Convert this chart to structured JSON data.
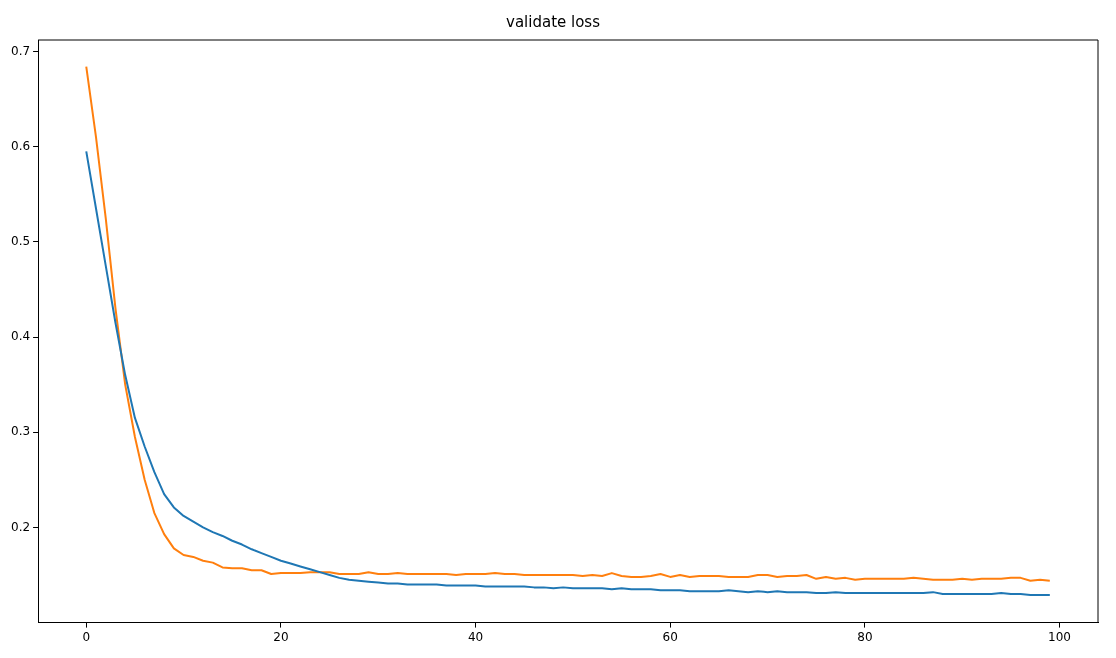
{
  "chart_data": {
    "type": "line",
    "title": "validate loss",
    "x": [
      0,
      1,
      2,
      3,
      4,
      5,
      6,
      7,
      8,
      9,
      10,
      11,
      12,
      13,
      14,
      15,
      16,
      17,
      18,
      19,
      20,
      21,
      22,
      23,
      24,
      25,
      26,
      27,
      28,
      29,
      30,
      31,
      32,
      33,
      34,
      35,
      36,
      37,
      38,
      39,
      40,
      41,
      42,
      43,
      44,
      45,
      46,
      47,
      48,
      49,
      50,
      51,
      52,
      53,
      54,
      55,
      56,
      57,
      58,
      59,
      60,
      61,
      62,
      63,
      64,
      65,
      66,
      67,
      68,
      69,
      70,
      71,
      72,
      73,
      74,
      75,
      76,
      77,
      78,
      79,
      80,
      81,
      82,
      83,
      84,
      85,
      86,
      87,
      88,
      89,
      90,
      91,
      92,
      93,
      94,
      95,
      96,
      97,
      98,
      99
    ],
    "series": [
      {
        "color": "#1f77b4",
        "values": [
          0.595,
          0.535,
          0.475,
          0.415,
          0.36,
          0.315,
          0.285,
          0.258,
          0.235,
          0.221,
          0.212,
          0.206,
          0.2,
          0.195,
          0.191,
          0.186,
          0.182,
          0.177,
          0.173,
          0.169,
          0.165,
          0.162,
          0.159,
          0.156,
          0.153,
          0.15,
          0.147,
          0.145,
          0.144,
          0.143,
          0.142,
          0.141,
          0.141,
          0.14,
          0.14,
          0.14,
          0.14,
          0.139,
          0.139,
          0.139,
          0.139,
          0.138,
          0.138,
          0.138,
          0.138,
          0.138,
          0.137,
          0.137,
          0.136,
          0.137,
          0.136,
          0.136,
          0.136,
          0.136,
          0.135,
          0.136,
          0.135,
          0.135,
          0.135,
          0.134,
          0.134,
          0.134,
          0.133,
          0.133,
          0.133,
          0.133,
          0.134,
          0.133,
          0.132,
          0.133,
          0.132,
          0.133,
          0.132,
          0.132,
          0.132,
          0.131,
          0.131,
          0.132,
          0.131,
          0.131,
          0.131,
          0.131,
          0.131,
          0.131,
          0.131,
          0.131,
          0.131,
          0.132,
          0.13,
          0.13,
          0.13,
          0.13,
          0.13,
          0.13,
          0.131,
          0.13,
          0.13,
          0.129,
          0.129,
          0.129
        ]
      },
      {
        "color": "#ff7f0e",
        "values": [
          0.684,
          0.61,
          0.525,
          0.43,
          0.35,
          0.295,
          0.25,
          0.215,
          0.193,
          0.178,
          0.171,
          0.169,
          0.165,
          0.163,
          0.158,
          0.157,
          0.157,
          0.155,
          0.155,
          0.151,
          0.152,
          0.152,
          0.152,
          0.153,
          0.153,
          0.153,
          0.151,
          0.151,
          0.151,
          0.153,
          0.151,
          0.151,
          0.152,
          0.151,
          0.151,
          0.151,
          0.151,
          0.151,
          0.15,
          0.151,
          0.151,
          0.151,
          0.152,
          0.151,
          0.151,
          0.15,
          0.15,
          0.15,
          0.15,
          0.15,
          0.15,
          0.149,
          0.15,
          0.149,
          0.152,
          0.149,
          0.148,
          0.148,
          0.149,
          0.151,
          0.148,
          0.15,
          0.148,
          0.149,
          0.149,
          0.149,
          0.148,
          0.148,
          0.148,
          0.15,
          0.15,
          0.148,
          0.149,
          0.149,
          0.15,
          0.146,
          0.148,
          0.146,
          0.147,
          0.145,
          0.146,
          0.146,
          0.146,
          0.146,
          0.146,
          0.147,
          0.146,
          0.145,
          0.145,
          0.145,
          0.146,
          0.145,
          0.146,
          0.146,
          0.146,
          0.147,
          0.147,
          0.144,
          0.145,
          0.144
        ]
      }
    ],
    "xlim": [
      -4.95,
      103.95
    ],
    "ylim": [
      0.1,
      0.712
    ],
    "xticks": [
      0,
      20,
      40,
      60,
      80,
      100
    ],
    "yticks": [
      0.2,
      0.3,
      0.4,
      0.5,
      0.6,
      0.7
    ],
    "grid": false,
    "legend": false,
    "marker": "none",
    "line_style": "solid"
  }
}
